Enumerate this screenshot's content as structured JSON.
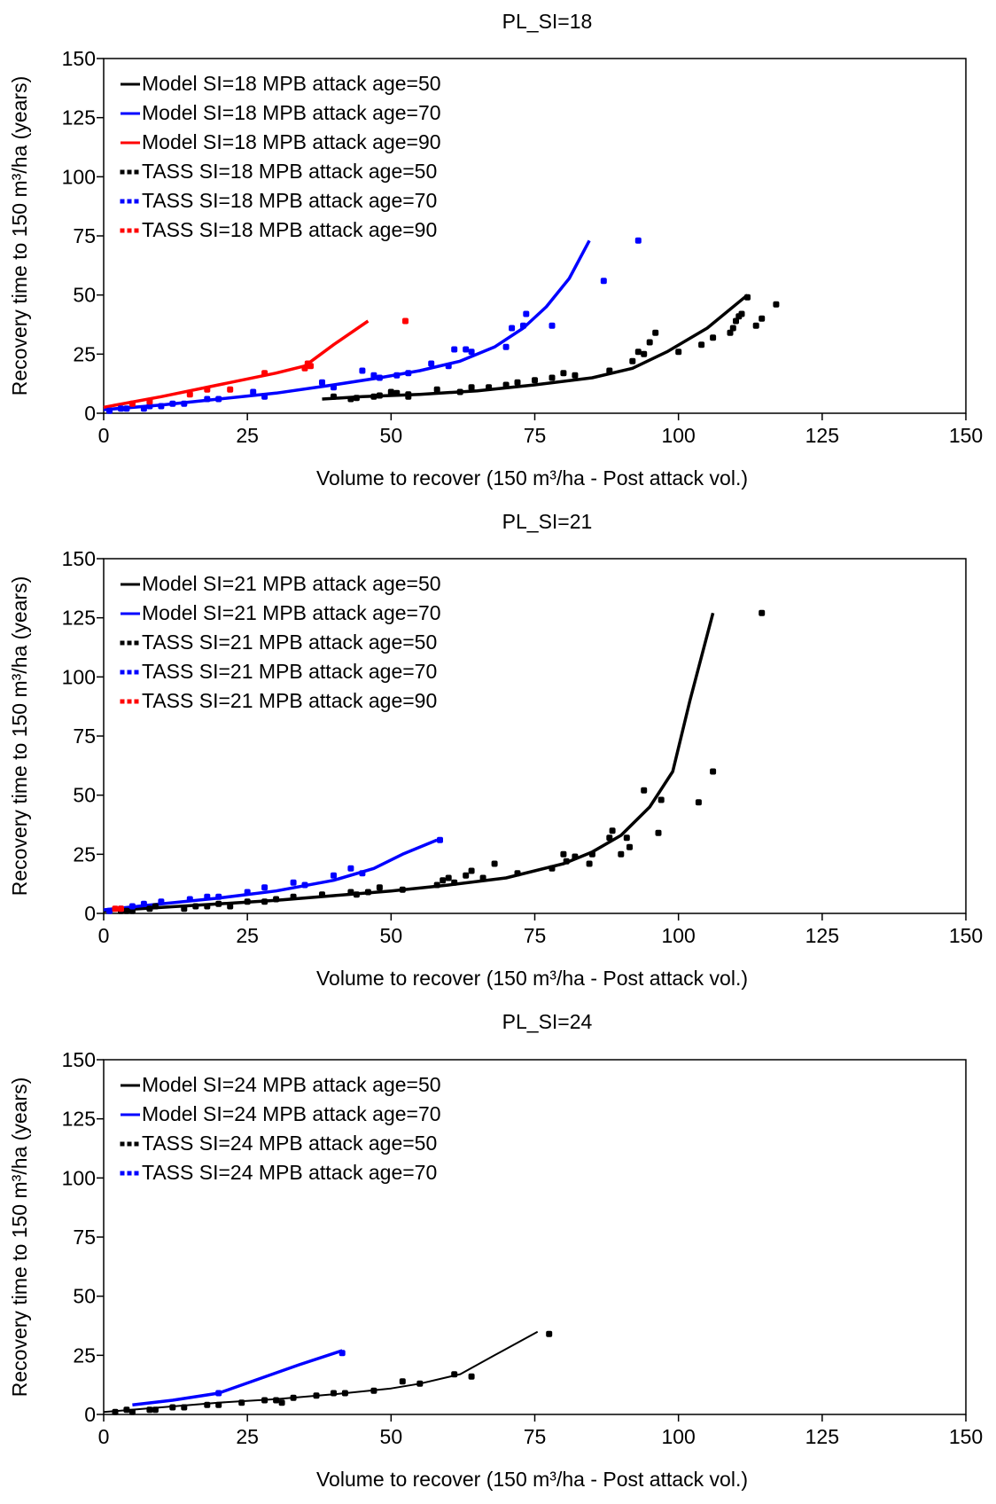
{
  "chart_data": [
    {
      "type": "scatter",
      "title": "PL_SI=18",
      "xlabel": "Volume to recover (150 m³/ha - Post attack vol.)",
      "ylabel": "Recovery time to 150 m³/ha (years)",
      "xlim": [
        0,
        150
      ],
      "ylim": [
        0,
        150
      ],
      "xticks": [
        "0",
        "25",
        "50",
        "75",
        "100",
        "125",
        "150"
      ],
      "yticks": [
        "0",
        "25",
        "50",
        "75",
        "100",
        "125",
        "150"
      ],
      "grid": false,
      "legend_position": "top-left",
      "series": [
        {
          "name": "Model SI=18 MPB attack age=50",
          "kind": "line",
          "color": "#000000",
          "x": [
            38,
            45,
            55,
            65,
            75,
            85,
            92,
            98,
            105,
            112
          ],
          "y": [
            6,
            7,
            8,
            9.5,
            12,
            15,
            19,
            26,
            36,
            50
          ]
        },
        {
          "name": "Model SI=18 MPB attack age=70",
          "kind": "line",
          "color": "#0000ff",
          "x": [
            0,
            10,
            20,
            30,
            40,
            48,
            55,
            62,
            68,
            73,
            77,
            81,
            84.5
          ],
          "y": [
            1.5,
            3.5,
            6,
            8.5,
            12,
            15,
            18,
            22,
            28,
            36,
            45,
            57,
            73
          ]
        },
        {
          "name": "Model SI=18 MPB attack age=90",
          "kind": "line",
          "color": "#ff0000",
          "x": [
            0,
            10,
            20,
            30,
            35,
            40,
            46
          ],
          "y": [
            2.5,
            7,
            12,
            17,
            20,
            29,
            39
          ]
        },
        {
          "name": "TASS SI=18 MPB attack age=50",
          "kind": "scatter",
          "color": "#000000",
          "x": [
            40,
            43,
            44,
            47,
            48,
            50,
            51,
            53,
            53,
            58,
            62,
            64,
            67,
            70,
            72,
            75,
            78,
            80,
            82,
            88,
            92,
            93,
            94,
            95,
            96,
            100,
            104,
            106,
            109,
            109.5,
            110,
            110.5,
            111,
            112,
            113.5,
            114.5,
            117
          ],
          "y": [
            7,
            6,
            6.5,
            7,
            7.5,
            9,
            8.5,
            8,
            7,
            10,
            9,
            11,
            11,
            12,
            13,
            14,
            15,
            17,
            16,
            18,
            22,
            26,
            25,
            30,
            34,
            26,
            29,
            32,
            34,
            36,
            39,
            41,
            42,
            49,
            37,
            40,
            46
          ]
        },
        {
          "name": "TASS SI=18 MPB attack age=70",
          "kind": "scatter",
          "color": "#0000ff",
          "x": [
            1,
            3,
            4,
            7,
            8,
            10,
            12,
            14,
            18,
            20,
            26,
            28,
            38,
            40,
            45,
            47,
            48,
            51,
            53,
            57,
            60,
            61,
            63,
            64,
            70,
            71,
            73,
            73.5,
            78,
            87,
            93
          ],
          "y": [
            1,
            2,
            2,
            2,
            3,
            3,
            4,
            4,
            6,
            6,
            9,
            7,
            13,
            11,
            18,
            16,
            15,
            16,
            17,
            21,
            20,
            27,
            27,
            26,
            28,
            36,
            37,
            42,
            37,
            56,
            73
          ]
        },
        {
          "name": "TASS SI=18 MPB attack age=90",
          "kind": "scatter",
          "color": "#ff0000",
          "x": [
            5,
            8,
            15,
            18,
            22,
            28,
            35,
            35.5,
            36,
            52.5
          ],
          "y": [
            4,
            5,
            8,
            10,
            10,
            17,
            19,
            21,
            20,
            39
          ]
        }
      ]
    },
    {
      "type": "scatter",
      "title": "PL_SI=21",
      "xlabel": "Volume to recover (150 m³/ha - Post attack vol.)",
      "ylabel": "Recovery time to 150 m³/ha (years)",
      "xlim": [
        0,
        150
      ],
      "ylim": [
        0,
        150
      ],
      "xticks": [
        "0",
        "25",
        "50",
        "75",
        "100",
        "125",
        "150"
      ],
      "yticks": [
        "0",
        "25",
        "50",
        "75",
        "100",
        "125",
        "150"
      ],
      "grid": false,
      "legend_position": "top-left",
      "series": [
        {
          "name": "Model SI=21 MPB attack age=50",
          "kind": "line",
          "color": "#000000",
          "x": [
            0,
            10,
            20,
            30,
            40,
            50,
            60,
            70,
            80,
            85,
            90,
            95,
            99,
            102,
            106
          ],
          "y": [
            1,
            2.5,
            4,
            5.5,
            7.5,
            9.5,
            12,
            15,
            21,
            26,
            33,
            45,
            60,
            90,
            127
          ]
        },
        {
          "name": "Model SI=21 MPB attack age=70",
          "kind": "line",
          "color": "#0000ff",
          "x": [
            0,
            10,
            20,
            30,
            40,
            47,
            52,
            58
          ],
          "y": [
            1.5,
            4,
            6.5,
            9.5,
            14,
            19,
            25,
            31
          ]
        },
        {
          "name": "TASS SI=21 MPB attack age=50",
          "kind": "scatter",
          "color": "#000000",
          "x": [
            3,
            4,
            5,
            8,
            9,
            14,
            16,
            18,
            20,
            22,
            25,
            28,
            30,
            33,
            38,
            43,
            44,
            46,
            48,
            52,
            58,
            59,
            60,
            61,
            63,
            64,
            66,
            68,
            72,
            78,
            80,
            80.5,
            82,
            84.5,
            85,
            88,
            88.5,
            90,
            91,
            91.5,
            94,
            96.5,
            97,
            103.5,
            106,
            114.5
          ],
          "y": [
            1,
            1,
            1,
            2,
            3,
            2,
            3,
            3,
            4,
            3,
            5,
            5,
            6,
            7,
            8,
            9,
            8,
            9,
            11,
            10,
            12,
            14,
            15,
            13,
            16,
            18,
            15,
            21,
            17,
            19,
            25,
            22,
            24,
            21,
            25,
            32,
            35,
            25,
            32,
            28,
            52,
            34,
            48,
            47,
            60,
            127
          ]
        },
        {
          "name": "TASS SI=21 MPB attack age=70",
          "kind": "scatter",
          "color": "#0000ff",
          "x": [
            1,
            3,
            5,
            7,
            10,
            15,
            18,
            20,
            25,
            28,
            33,
            35,
            40,
            43,
            45,
            58.5
          ],
          "y": [
            1,
            2,
            3,
            4,
            5,
            6,
            7,
            7,
            9,
            11,
            13,
            12,
            16,
            19,
            17,
            31
          ]
        },
        {
          "name": "TASS SI=21 MPB attack age=90",
          "kind": "scatter",
          "color": "#ff0000",
          "x": [
            2,
            3
          ],
          "y": [
            2,
            2
          ]
        }
      ]
    },
    {
      "type": "scatter",
      "title": "PL_SI=24",
      "xlabel": "Volume to recover (150 m³/ha - Post attack vol.)",
      "ylabel": "Recovery time to 150 m³/ha (years)",
      "xlim": [
        0,
        150
      ],
      "ylim": [
        0,
        150
      ],
      "xticks": [
        "0",
        "25",
        "50",
        "75",
        "100",
        "125",
        "150"
      ],
      "yticks": [
        "0",
        "25",
        "50",
        "75",
        "100",
        "125",
        "150"
      ],
      "grid": false,
      "legend_position": "top-left",
      "series": [
        {
          "name": "Model SI=24 MPB attack age=50",
          "kind": "line",
          "color": "#000000",
          "x": [
            0,
            10,
            20,
            30,
            40,
            50,
            55,
            62,
            68,
            75.5
          ],
          "y": [
            1,
            3,
            5,
            6.5,
            8.5,
            11,
            13,
            17,
            25,
            35
          ]
        },
        {
          "name": "Model SI=24 MPB attack age=70",
          "kind": "line",
          "color": "#0000ff",
          "x": [
            5,
            12,
            20,
            27,
            34,
            41.5
          ],
          "y": [
            4,
            6,
            9,
            15,
            21,
            27
          ]
        },
        {
          "name": "TASS SI=24 MPB attack age=50",
          "kind": "scatter",
          "color": "#000000",
          "x": [
            2,
            4,
            5,
            8,
            9,
            12,
            14,
            18,
            20,
            24,
            28,
            30,
            31,
            33,
            37,
            40,
            42,
            47,
            52,
            55,
            61,
            64,
            77.5
          ],
          "y": [
            1,
            2,
            1,
            2,
            2,
            3,
            3,
            4,
            4,
            5,
            6,
            6,
            5,
            7,
            8,
            9,
            9,
            10,
            14,
            13,
            17,
            16,
            34
          ]
        },
        {
          "name": "TASS SI=24 MPB attack age=70",
          "kind": "scatter",
          "color": "#0000ff",
          "x": [
            20,
            41.5
          ],
          "y": [
            9,
            26
          ]
        }
      ]
    }
  ]
}
